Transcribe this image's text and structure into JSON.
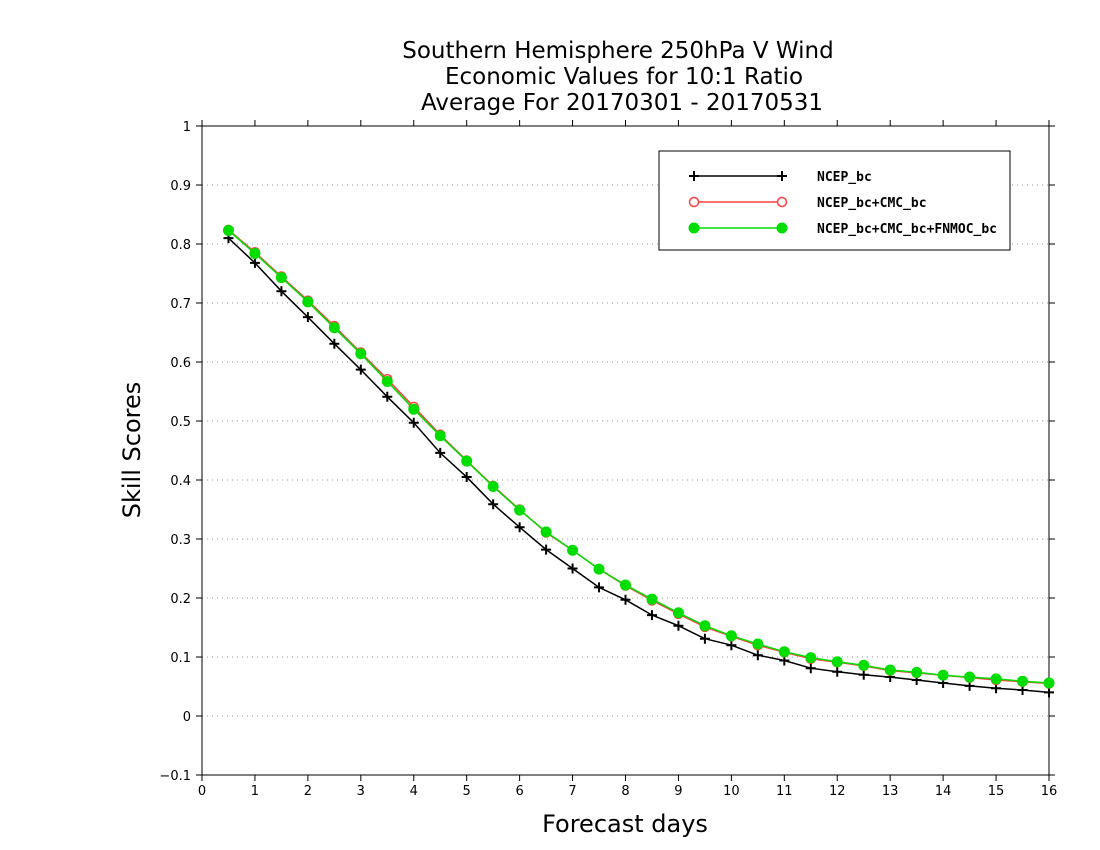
{
  "chart_data": {
    "type": "line",
    "title": [
      "Southern Hemisphere 250hPa V Wind",
      "Economic Values for 10:1 Ratio",
      "Average For 20170301 - 20170531"
    ],
    "xlabel": "Forecast days",
    "ylabel": "Skill Scores",
    "xlim": [
      0,
      16
    ],
    "ylim": [
      -0.1,
      1
    ],
    "xticks": [
      "0",
      "1",
      "2",
      "3",
      "4",
      "5",
      "6",
      "7",
      "8",
      "9",
      "10",
      "11",
      "12",
      "13",
      "14",
      "15",
      "16"
    ],
    "yticks": [
      "−0.1",
      "0",
      "0.1",
      "0.2",
      "0.3",
      "0.4",
      "0.5",
      "0.6",
      "0.7",
      "0.8",
      "0.9",
      "1"
    ],
    "grid": "horizontal-dotted",
    "legend_position": "top-right",
    "x": [
      0.5,
      1,
      1.5,
      2,
      2.5,
      3,
      3.5,
      4,
      4.5,
      5,
      5.5,
      6,
      6.5,
      7,
      7.5,
      8,
      8.5,
      9,
      9.5,
      10,
      10.5,
      11,
      11.5,
      12,
      12.5,
      13,
      13.5,
      14,
      14.5,
      15,
      15.5,
      16
    ],
    "series": [
      {
        "name": "NCEP_bc",
        "color": "#000000",
        "marker": "plus",
        "values": [
          0.81,
          0.768,
          0.72,
          0.676,
          0.631,
          0.587,
          0.541,
          0.497,
          0.446,
          0.405,
          0.359,
          0.32,
          0.282,
          0.25,
          0.218,
          0.197,
          0.171,
          0.153,
          0.131,
          0.12,
          0.103,
          0.094,
          0.081,
          0.075,
          0.07,
          0.066,
          0.061,
          0.056,
          0.051,
          0.047,
          0.044,
          0.04
        ]
      },
      {
        "name": "NCEP_bc+CMC_bc",
        "color": "#ff4040",
        "marker": "open-circle",
        "values": [
          0.824,
          0.786,
          0.745,
          0.704,
          0.661,
          0.616,
          0.571,
          0.524,
          0.477,
          0.433,
          0.39,
          0.35,
          0.311,
          0.281,
          0.249,
          0.221,
          0.196,
          0.173,
          0.151,
          0.135,
          0.12,
          0.108,
          0.097,
          0.091,
          0.085,
          0.077,
          0.073,
          0.069,
          0.065,
          0.061,
          0.058,
          0.055
        ]
      },
      {
        "name": "NCEP_bc+CMC_bc+FNMOC_bc",
        "color": "#00dd00",
        "marker": "filled-circle",
        "values": [
          0.823,
          0.784,
          0.743,
          0.702,
          0.658,
          0.614,
          0.567,
          0.52,
          0.475,
          0.432,
          0.389,
          0.349,
          0.312,
          0.281,
          0.249,
          0.222,
          0.198,
          0.175,
          0.153,
          0.136,
          0.122,
          0.109,
          0.099,
          0.092,
          0.086,
          0.078,
          0.074,
          0.069,
          0.066,
          0.063,
          0.059,
          0.056
        ]
      }
    ]
  }
}
